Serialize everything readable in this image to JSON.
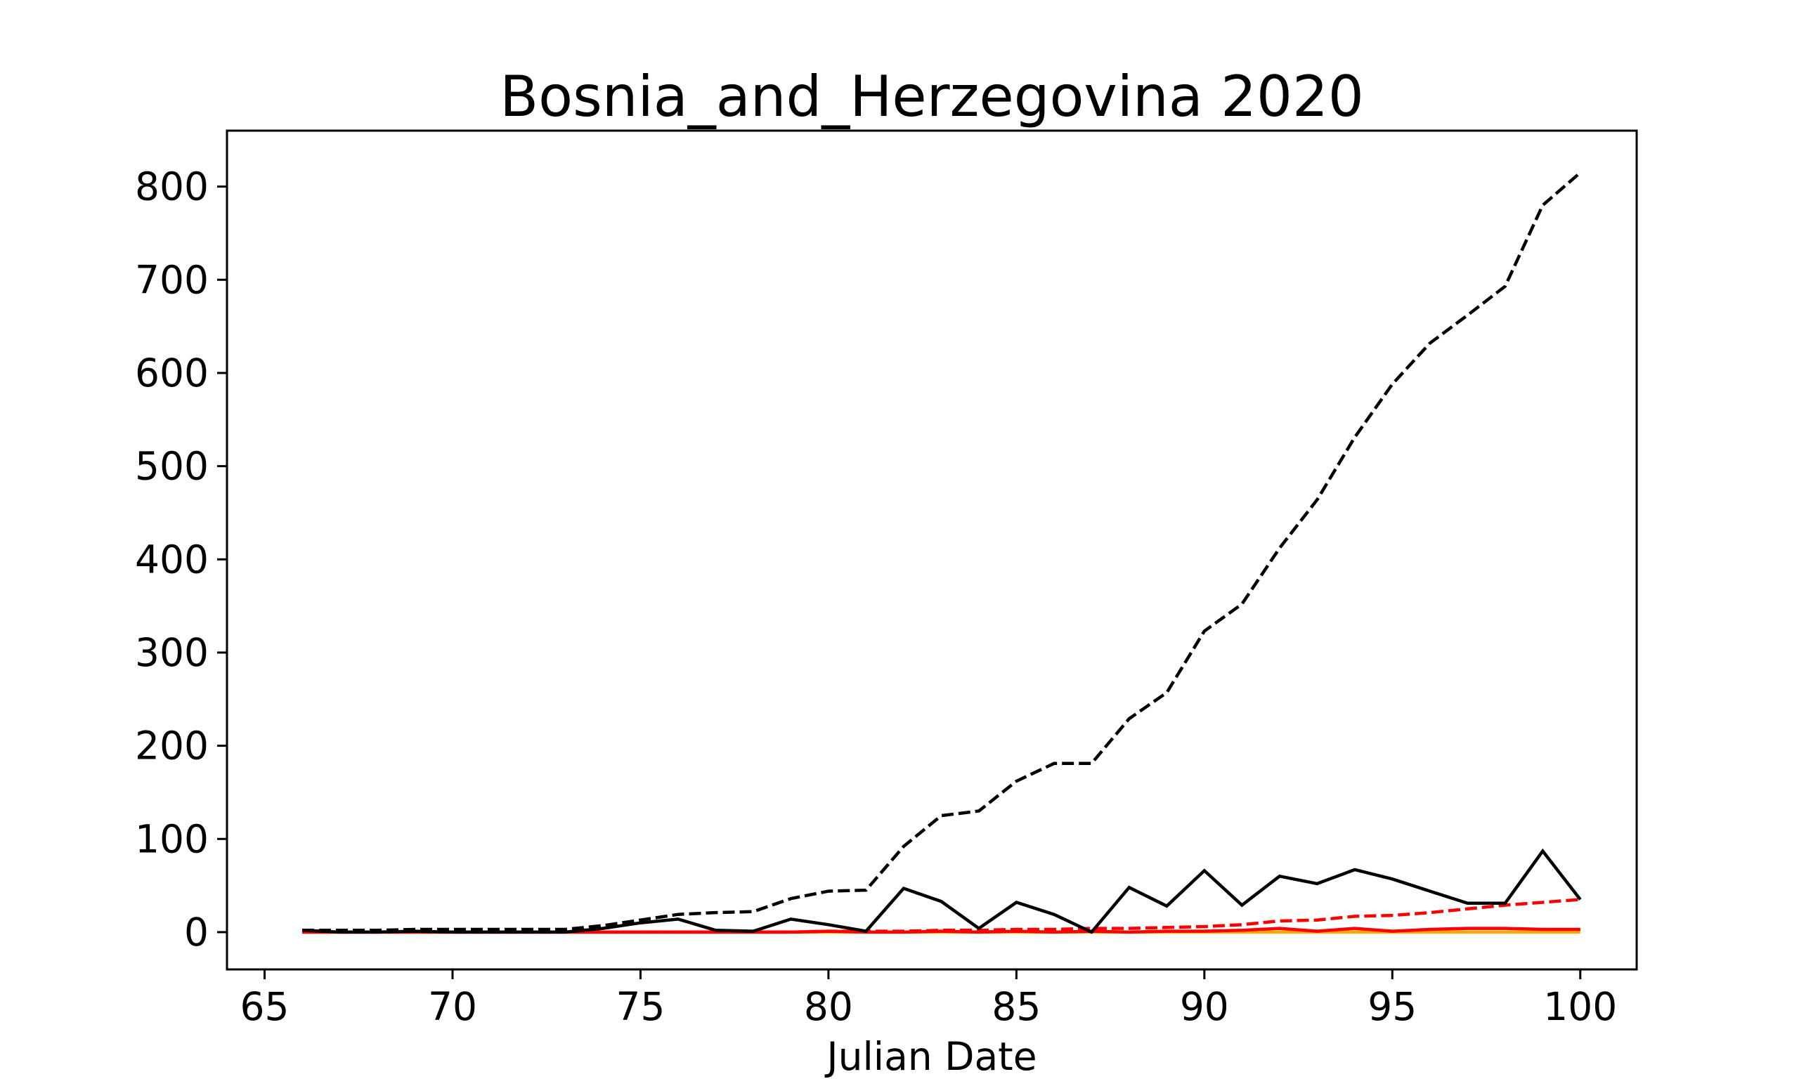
{
  "chart_data": {
    "type": "line",
    "title": "Bosnia_and_Herzegovina 2020",
    "xlabel": "Julian Date",
    "ylabel": "",
    "xlim": [
      64,
      101.5
    ],
    "ylim": [
      -40,
      860
    ],
    "xticks": [
      65,
      70,
      75,
      80,
      85,
      90,
      95,
      100
    ],
    "yticks": [
      0,
      100,
      200,
      300,
      400,
      500,
      600,
      700,
      800
    ],
    "grid": false,
    "x": [
      66,
      67,
      68,
      69,
      70,
      71,
      72,
      73,
      74,
      75,
      76,
      77,
      78,
      79,
      80,
      81,
      82,
      83,
      84,
      85,
      86,
      87,
      88,
      89,
      90,
      91,
      92,
      93,
      94,
      95,
      96,
      97,
      98,
      99,
      100
    ],
    "series": [
      {
        "color": "#000000",
        "dash": "dashed",
        "values": [
          2,
          2,
          2,
          3,
          3,
          3,
          3,
          3,
          7,
          13,
          19,
          21,
          22,
          36,
          44,
          45,
          92,
          125,
          130,
          162,
          181,
          181,
          229,
          257,
          323,
          352,
          412,
          464,
          531,
          588,
          632,
          662,
          693,
          780,
          815
        ]
      },
      {
        "color": "#000000",
        "dash": "solid",
        "values": [
          2,
          0,
          0,
          1,
          0,
          0,
          0,
          0,
          4,
          10,
          14,
          2,
          1,
          14,
          8,
          1,
          47,
          33,
          4,
          32,
          19,
          0,
          48,
          28,
          66,
          29,
          60,
          52,
          67,
          57,
          44,
          31,
          31,
          87,
          35
        ]
      },
      {
        "color": "#ff0000",
        "dash": "dashed",
        "values": [
          0,
          0,
          0,
          0,
          0,
          0,
          0,
          0,
          0,
          0,
          0,
          0,
          0,
          0,
          1,
          1,
          1,
          2,
          2,
          3,
          3,
          4,
          4,
          5,
          6,
          8,
          12,
          13,
          17,
          18,
          21,
          25,
          29,
          32,
          35
        ]
      },
      {
        "color": "#ff0000",
        "dash": "solid",
        "values": [
          0,
          0,
          0,
          0,
          0,
          0,
          0,
          0,
          0,
          0,
          0,
          0,
          0,
          0,
          1,
          0,
          0,
          1,
          0,
          1,
          0,
          1,
          0,
          1,
          1,
          2,
          4,
          1,
          4,
          1,
          3,
          4,
          4,
          3,
          3
        ]
      },
      {
        "color": "#ffa500",
        "dash": "solid",
        "values": [
          0,
          0,
          0,
          0,
          0,
          0,
          0,
          0,
          0,
          0,
          0,
          0,
          0,
          0,
          0,
          0,
          0,
          0,
          0,
          0,
          0,
          0,
          0,
          0,
          0,
          0,
          0,
          0,
          0,
          0,
          0,
          0,
          0,
          0,
          0
        ]
      }
    ]
  }
}
